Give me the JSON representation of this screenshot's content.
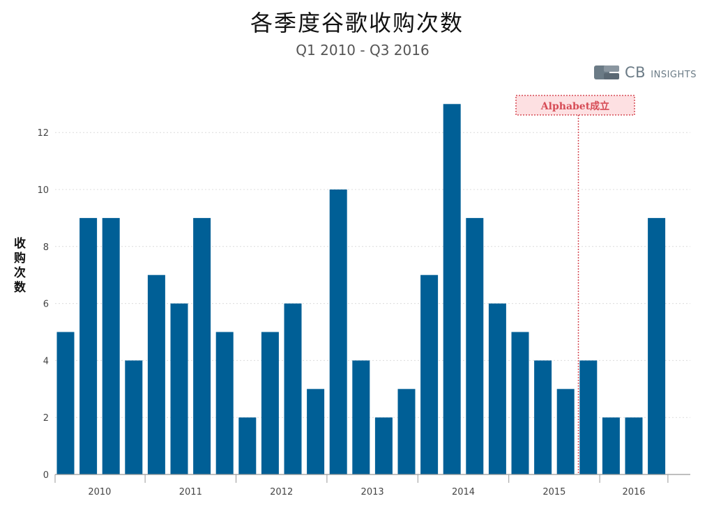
{
  "chart_data": {
    "type": "bar",
    "title": "各季度谷歌收购次数",
    "subtitle": "Q1 2010 - Q3 2016",
    "ylabel": "收购次数",
    "xlabel": "",
    "year_labels": [
      "2010",
      "2011",
      "2012",
      "2013",
      "2014",
      "2015",
      "2016"
    ],
    "categories": [
      "2010 Q1",
      "2010 Q2",
      "2010 Q3",
      "2010 Q4",
      "2011 Q1",
      "2011 Q2",
      "2011 Q3",
      "2011 Q4",
      "2012 Q1",
      "2012 Q2",
      "2012 Q3",
      "2012 Q4",
      "2013 Q1",
      "2013 Q2",
      "2013 Q3",
      "2013 Q4",
      "2014 Q1",
      "2014 Q2",
      "2014 Q3",
      "2014 Q4",
      "2015 Q1",
      "2015 Q2",
      "2015 Q3",
      "2015 Q4",
      "2016 Q1",
      "2016 Q2",
      "2016 Q3"
    ],
    "values": [
      5,
      9,
      9,
      4,
      7,
      6,
      9,
      5,
      2,
      5,
      6,
      3,
      10,
      4,
      2,
      3,
      7,
      13,
      9,
      6,
      5,
      4,
      3,
      4,
      2,
      2,
      9
    ],
    "ylim": [
      0,
      13
    ],
    "yticks": [
      0,
      2,
      4,
      6,
      8,
      10,
      12
    ],
    "grid": true,
    "bar_color": "#005f96",
    "annotation": {
      "text": "Alphabet成立",
      "after_category": "2015 Q3",
      "color": "#d64b55"
    }
  },
  "brand": {
    "logo_text": "CB",
    "logo_text_small": "INSIGHTS",
    "logo_color": "#6b7b86"
  }
}
